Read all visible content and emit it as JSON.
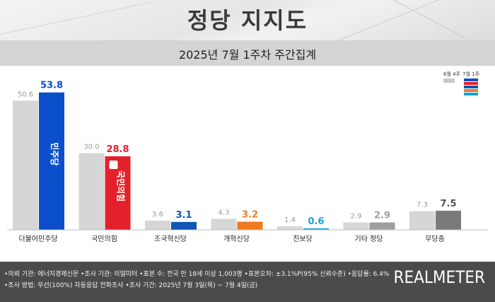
{
  "title": "정당 지지도",
  "subtitle": "2025년 7월 1주차 주간집계",
  "legend": {
    "prev_label": "6월 4주",
    "cur_label": "7월 1주"
  },
  "chart_data": {
    "type": "bar",
    "categories": [
      "더불어민주당",
      "국민의힘",
      "조국혁신당",
      "개혁신당",
      "진보당",
      "기타 정당",
      "무당층"
    ],
    "series": [
      {
        "name": "6월 4주",
        "values": [
          50.6,
          30.0,
          3.6,
          4.3,
          1.4,
          2.9,
          7.3
        ]
      },
      {
        "name": "7월 1주",
        "values": [
          53.8,
          28.8,
          3.1,
          3.2,
          0.6,
          2.9,
          7.5
        ]
      }
    ],
    "prev_labels": [
      "50.6",
      "30.0",
      "3.6",
      "4.3",
      "1.4",
      "2.9",
      "7.3"
    ],
    "cur_labels": [
      "53.8",
      "28.8",
      "3.1",
      "3.2",
      "0.6",
      "2.9",
      "7.5"
    ],
    "colors": [
      "#0a4fc9",
      "#e3202b",
      "#0e57b3",
      "#ee7a22",
      "#19a0d8",
      "#9e9e9e",
      "#7a7a7a"
    ],
    "label_colors": [
      "#0a4fc9",
      "#e3202b",
      "#0e57b3",
      "#ee7a22",
      "#19a0d8",
      "#9e9e9e",
      "#555555"
    ],
    "prev_color": "#d6d6d6",
    "bar_logos": [
      "민주당",
      "국민의힘"
    ],
    "ylim": [
      0,
      60
    ]
  },
  "footer": {
    "line1": "•의뢰 기관: 에너지경제신문  •조사 기관: 리얼미터 •표본 수: 전국 만 18세 이상 1,003명 •표본오차: ±3.1%P(95% 신뢰수준) •응답률: 6.4%",
    "line2": "•조사 방법: 무선(100%) 자동응답 전화조사  •조사 기간: 2025년 7월 3일(목) ~ 7월 4일(금)",
    "brand": "REALMETER"
  }
}
